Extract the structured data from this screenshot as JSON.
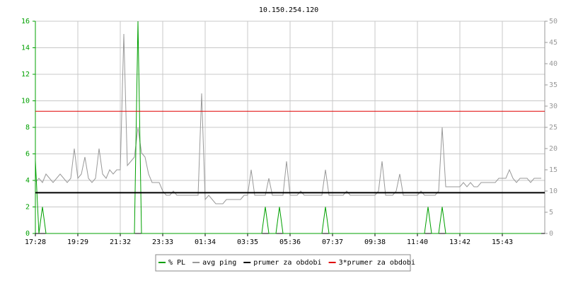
{
  "chart_data": {
    "type": "line",
    "title": "10.150.254.120",
    "categories": [
      "17:28",
      null,
      null,
      null,
      null,
      null,
      null,
      null,
      null,
      null,
      null,
      null,
      "19:29",
      null,
      null,
      null,
      null,
      null,
      null,
      null,
      null,
      null,
      null,
      null,
      "21:32",
      null,
      null,
      null,
      null,
      null,
      null,
      null,
      null,
      null,
      null,
      null,
      "23:33",
      null,
      null,
      null,
      null,
      null,
      null,
      null,
      null,
      null,
      null,
      null,
      "01:34",
      null,
      null,
      null,
      null,
      null,
      null,
      null,
      null,
      null,
      null,
      null,
      "03:35",
      null,
      null,
      null,
      null,
      null,
      null,
      null,
      null,
      null,
      null,
      null,
      "05:36",
      null,
      null,
      null,
      null,
      null,
      null,
      null,
      null,
      null,
      null,
      null,
      "07:37",
      null,
      null,
      null,
      null,
      null,
      null,
      null,
      null,
      null,
      null,
      null,
      "09:38",
      null,
      null,
      null,
      null,
      null,
      null,
      null,
      null,
      null,
      null,
      null,
      "11:40",
      null,
      null,
      null,
      null,
      null,
      null,
      null,
      null,
      null,
      null,
      null,
      "13:42",
      null,
      null,
      null,
      null,
      null,
      null,
      null,
      null,
      null,
      null,
      null,
      "15:43",
      null,
      null,
      null,
      null,
      null,
      null,
      null,
      null,
      null,
      null,
      null
    ],
    "series": [
      {
        "name": "% PL",
        "color": "#00a000",
        "axis": "y",
        "values": [
          5.5,
          0,
          2,
          0,
          0,
          0,
          0,
          0,
          0,
          0,
          0,
          0,
          0,
          0,
          0,
          0,
          0,
          0,
          0,
          0,
          0,
          0,
          0,
          0,
          0,
          0,
          0,
          0,
          0,
          16,
          0,
          0,
          0,
          0,
          0,
          0,
          0,
          0,
          0,
          0,
          0,
          0,
          0,
          0,
          0,
          0,
          0,
          0,
          0,
          0,
          0,
          0,
          0,
          0,
          0,
          0,
          0,
          0,
          0,
          0,
          0,
          0,
          0,
          0,
          0,
          2,
          0,
          0,
          0,
          2,
          0,
          0,
          0,
          0,
          0,
          0,
          0,
          0,
          0,
          0,
          0,
          0,
          2,
          0,
          0,
          0,
          0,
          0,
          0,
          0,
          0,
          0,
          0,
          0,
          0,
          0,
          0,
          0,
          0,
          0,
          0,
          0,
          0,
          0,
          0,
          0,
          0,
          0,
          0,
          0,
          0,
          2,
          0,
          0,
          0,
          2,
          0,
          0,
          0,
          0,
          0,
          0,
          0,
          0,
          0,
          0,
          0,
          0,
          0,
          0,
          0,
          0,
          0,
          0,
          0,
          0,
          0,
          0,
          0,
          0,
          0,
          0,
          0,
          0
        ]
      },
      {
        "name": "avg ping",
        "color": "#999999",
        "axis": "y2",
        "values": [
          12,
          13,
          12,
          14,
          13,
          12,
          13,
          14,
          13,
          12,
          13,
          20,
          13,
          14,
          18,
          13,
          12,
          13,
          20,
          14,
          13,
          15,
          14,
          15,
          15,
          47,
          16,
          17,
          18,
          25,
          19,
          18,
          14,
          12,
          12,
          12,
          10,
          9,
          9,
          10,
          9,
          9,
          9,
          9,
          9,
          9,
          9,
          33,
          8,
          9,
          8,
          7,
          7,
          7,
          8,
          8,
          8,
          8,
          8,
          9,
          9,
          15,
          9,
          9,
          9,
          9,
          13,
          9,
          9,
          9,
          9,
          17,
          9,
          9,
          9,
          10,
          9,
          9,
          9,
          9,
          9,
          9,
          15,
          9,
          9,
          9,
          9,
          9,
          10,
          9,
          9,
          9,
          9,
          9,
          9,
          9,
          9,
          10,
          17,
          9,
          9,
          9,
          10,
          14,
          9,
          9,
          9,
          9,
          9,
          10,
          9,
          9,
          9,
          9,
          10,
          25,
          11,
          11,
          11,
          11,
          11,
          12,
          11,
          12,
          11,
          11,
          12,
          12,
          12,
          12,
          12,
          13,
          13,
          13,
          15,
          13,
          12,
          13,
          13,
          13,
          12,
          13,
          13,
          13
        ]
      },
      {
        "name": "prumer za obdobi",
        "color": "#000000",
        "axis": "y2",
        "value": 9.6
      },
      {
        "name": "3*prumer za obdobi",
        "color": "#e00000",
        "axis": "y2",
        "value": 28.8
      }
    ],
    "ylim": [
      0,
      16
    ],
    "yticks": [
      0,
      2,
      4,
      6,
      8,
      10,
      12,
      14,
      16
    ],
    "y2lim": [
      0,
      50
    ],
    "y2ticks": [
      0,
      5,
      10,
      15,
      20,
      25,
      30,
      35,
      40,
      45,
      50
    ],
    "grid": true
  }
}
